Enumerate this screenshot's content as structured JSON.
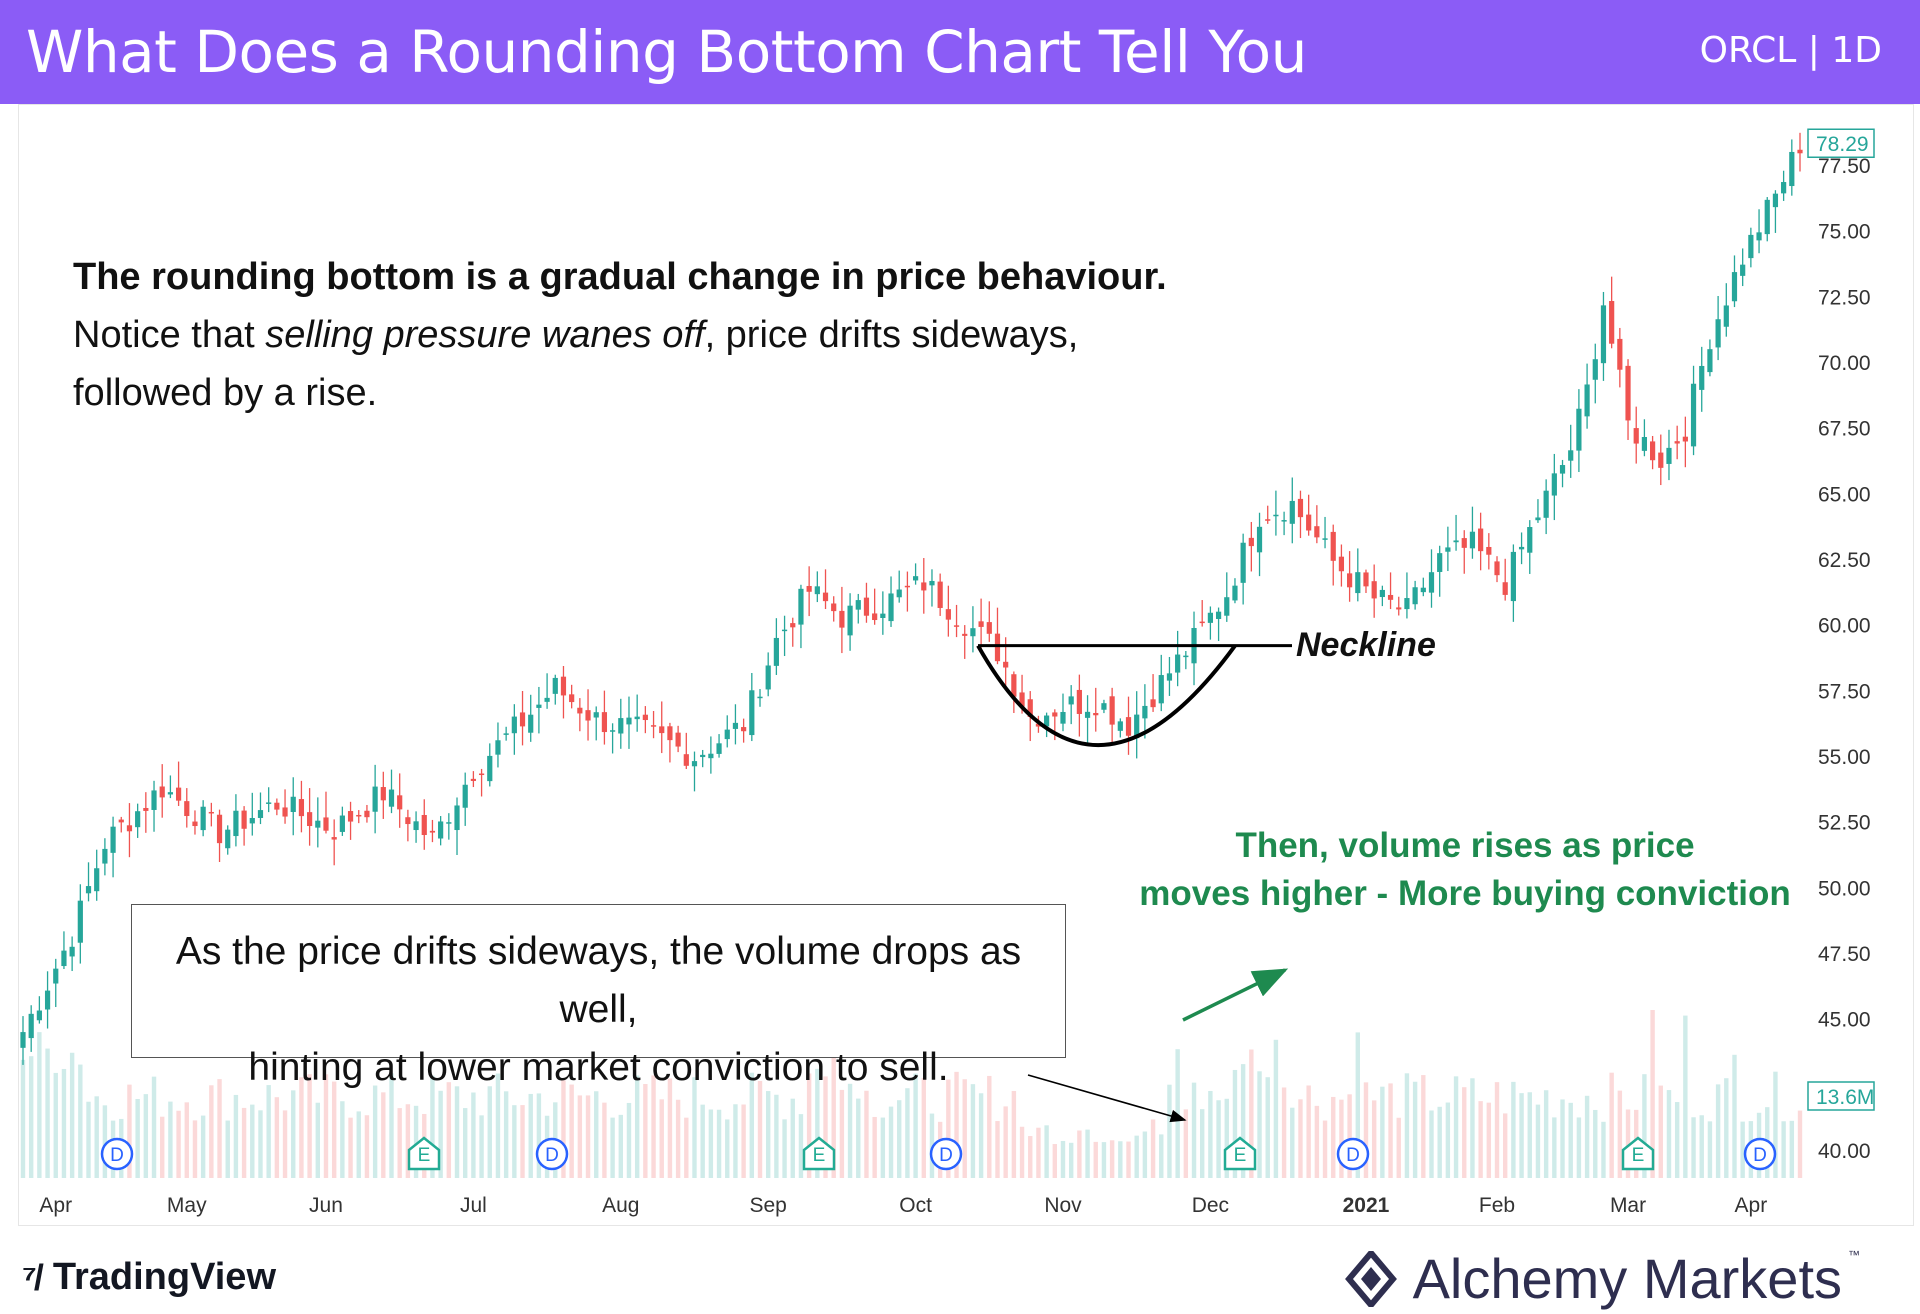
{
  "header": {
    "title": "What Does a Rounding Bottom Chart Tell You",
    "ticker": "ORCL | 1D"
  },
  "description": {
    "line1_bold": "The rounding bottom is a gradual change in price behaviour.",
    "line2_pre": "Notice that ",
    "line2_italic": "selling pressure wanes off",
    "line2_post": ", price drifts sideways,",
    "line3": "followed by a rise."
  },
  "annotations": {
    "box_line1": "As the price drifts sideways, the volume drops as well,",
    "box_line2": "hinting at lower market conviction to sell.",
    "green_line1": "Then, volume rises as price",
    "green_line2": "moves higher - More buying conviction",
    "neckline": "Neckline"
  },
  "footer": {
    "brand_left": "TradingView",
    "brand_right": "Alchemy Markets",
    "trademark": "™"
  },
  "colors": {
    "up": "#26a69a",
    "down": "#ef5350",
    "header": "#8b5cf6",
    "annotation_green": "#1e8a4f",
    "event_icon": "#2962ff",
    "earnings_icon": "#22ab94"
  },
  "chart_data": {
    "type": "candlestick",
    "symbol": "ORCL",
    "interval": "1D",
    "ylim": [
      38.5,
      80.5
    ],
    "y_ticks": [
      "40.00",
      "45.00",
      "47.50",
      "50.00",
      "52.50",
      "55.00",
      "57.50",
      "60.00",
      "62.50",
      "65.00",
      "67.50",
      "70.00",
      "72.50",
      "75.00",
      "77.50"
    ],
    "x_ticks": [
      "Apr",
      "May",
      "Jun",
      "Jul",
      "Aug",
      "Sep",
      "Oct",
      "Nov",
      "Dec",
      "2021",
      "Feb",
      "Mar",
      "Apr"
    ],
    "last_price": "78.29",
    "last_volume": "13.6M",
    "close_path": [
      [
        0,
        44.5
      ],
      [
        6,
        48.2
      ],
      [
        10,
        51.7
      ],
      [
        17,
        53.8
      ],
      [
        24,
        52.1
      ],
      [
        31,
        53.2
      ],
      [
        38,
        52.2
      ],
      [
        44,
        53.6
      ],
      [
        50,
        51.8
      ],
      [
        55,
        54.5
      ],
      [
        60,
        56.0
      ],
      [
        65,
        57.6
      ],
      [
        70,
        56.4
      ],
      [
        76,
        55.9
      ],
      [
        82,
        55.0
      ],
      [
        88,
        56.2
      ],
      [
        92,
        59.4
      ],
      [
        96,
        61.3
      ],
      [
        100,
        60.3
      ],
      [
        105,
        60.8
      ],
      [
        110,
        61.6
      ],
      [
        115,
        60.1
      ],
      [
        119,
        59.0
      ],
      [
        123,
        56.5
      ],
      [
        127,
        56.9
      ],
      [
        131,
        57.1
      ],
      [
        135,
        56.2
      ],
      [
        139,
        57.8
      ],
      [
        143,
        59.4
      ],
      [
        147,
        61.2
      ],
      [
        151,
        64.2
      ],
      [
        155,
        64.6
      ],
      [
        160,
        62.4
      ],
      [
        165,
        61.0
      ],
      [
        169,
        60.5
      ],
      [
        173,
        62.5
      ],
      [
        177,
        63.0
      ],
      [
        181,
        61.6
      ],
      [
        185,
        64.2
      ],
      [
        189,
        66.7
      ],
      [
        191,
        68.9
      ],
      [
        193,
        72.3
      ],
      [
        196,
        67.6
      ],
      [
        200,
        66.3
      ],
      [
        203,
        67.5
      ],
      [
        206,
        71.0
      ],
      [
        210,
        74.0
      ],
      [
        214,
        76.3
      ],
      [
        217,
        78.3
      ]
    ],
    "volume_ylim": [
      0,
      40
    ],
    "volume_note": "volume in millions (approximate)",
    "event_markers": [
      "D",
      "E",
      "D",
      "E",
      "D",
      "E",
      "D",
      "E",
      "D"
    ],
    "neckline_value": 59.2,
    "rounding_bottom_low": 54.6
  }
}
